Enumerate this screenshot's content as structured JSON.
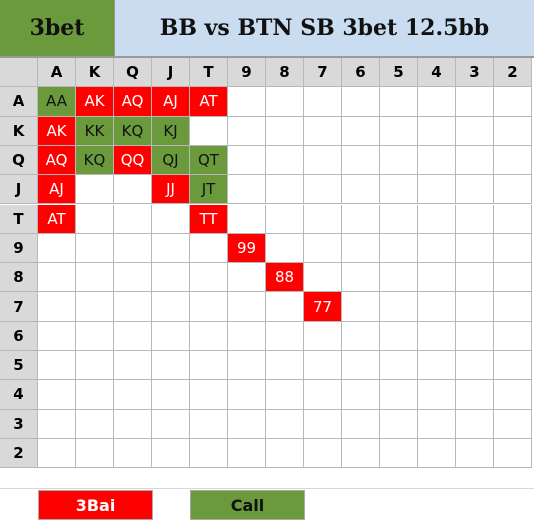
{
  "header": {
    "action": "3bet",
    "title": "BB vs BTN SB 3bet 12.5bb"
  },
  "ranks": [
    "A",
    "K",
    "Q",
    "J",
    "T",
    "9",
    "8",
    "7",
    "6",
    "5",
    "4",
    "3",
    "2"
  ],
  "colors": {
    "raise": "#ff0000",
    "call": "#6b9a3d",
    "header_bg": "#c9dcf0",
    "rank_bg": "#d9d9d9"
  },
  "hands": [
    {
      "row": "A",
      "col": "A",
      "label": "AA",
      "action": "call"
    },
    {
      "row": "A",
      "col": "K",
      "label": "AK",
      "action": "raise"
    },
    {
      "row": "A",
      "col": "Q",
      "label": "AQ",
      "action": "raise"
    },
    {
      "row": "A",
      "col": "J",
      "label": "AJ",
      "action": "raise"
    },
    {
      "row": "A",
      "col": "T",
      "label": "AT",
      "action": "raise"
    },
    {
      "row": "K",
      "col": "A",
      "label": "AK",
      "action": "raise"
    },
    {
      "row": "K",
      "col": "K",
      "label": "KK",
      "action": "call"
    },
    {
      "row": "K",
      "col": "Q",
      "label": "KQ",
      "action": "call"
    },
    {
      "row": "K",
      "col": "J",
      "label": "KJ",
      "action": "call"
    },
    {
      "row": "Q",
      "col": "A",
      "label": "AQ",
      "action": "raise"
    },
    {
      "row": "Q",
      "col": "K",
      "label": "KQ",
      "action": "call"
    },
    {
      "row": "Q",
      "col": "Q",
      "label": "QQ",
      "action": "raise"
    },
    {
      "row": "Q",
      "col": "J",
      "label": "QJ",
      "action": "call"
    },
    {
      "row": "Q",
      "col": "T",
      "label": "QT",
      "action": "call"
    },
    {
      "row": "J",
      "col": "A",
      "label": "AJ",
      "action": "raise"
    },
    {
      "row": "J",
      "col": "J",
      "label": "JJ",
      "action": "raise"
    },
    {
      "row": "J",
      "col": "T",
      "label": "JT",
      "action": "call"
    },
    {
      "row": "T",
      "col": "A",
      "label": "AT",
      "action": "raise"
    },
    {
      "row": "T",
      "col": "T",
      "label": "TT",
      "action": "raise"
    },
    {
      "row": "9",
      "col": "9",
      "label": "99",
      "action": "raise"
    },
    {
      "row": "8",
      "col": "8",
      "label": "88",
      "action": "raise"
    },
    {
      "row": "7",
      "col": "7",
      "label": "77",
      "action": "raise"
    }
  ],
  "legend": {
    "raise_label": "3Bai",
    "call_label": "Call"
  }
}
